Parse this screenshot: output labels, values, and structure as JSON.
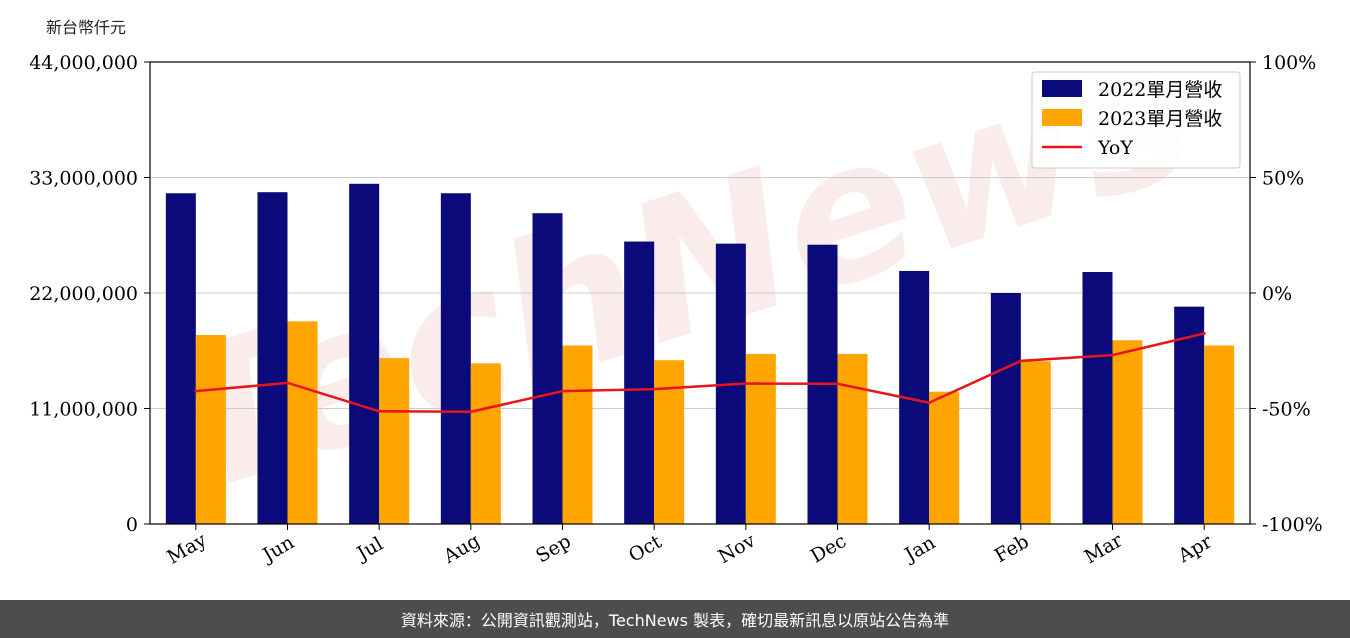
{
  "unit_label": "新台幣仟元",
  "footer_text": "資料來源：公開資訊觀測站，TechNews 製表，確切最新訊息以原站公告為準",
  "watermark_text": "TechNews",
  "colors": {
    "bar2022": "#0a0a7a",
    "bar2023": "#ffa500",
    "yoy": "#e8141c",
    "axis": "#000000",
    "grid": "#cccccc"
  },
  "chart_data": {
    "type": "bar",
    "categories": [
      "May",
      "Jun",
      "Jul",
      "Aug",
      "Sep",
      "Oct",
      "Nov",
      "Dec",
      "Jan",
      "Feb",
      "Mar",
      "Apr"
    ],
    "series": [
      {
        "name": "2022單月營收",
        "values": [
          31500000,
          31600000,
          32400000,
          31500000,
          29600000,
          26900000,
          26700000,
          26600000,
          24100000,
          22000000,
          24000000,
          20700000
        ]
      },
      {
        "name": "2023單月營收",
        "values": [
          18000000,
          19300000,
          15800000,
          15300000,
          17000000,
          15600000,
          16200000,
          16200000,
          12600000,
          15500000,
          17500000,
          17000000
        ]
      },
      {
        "name": "YoY",
        "type": "line",
        "axis": "right",
        "values": [
          -42.5,
          -38.9,
          -51.2,
          -51.4,
          -42.5,
          -41.6,
          -39.2,
          -39.3,
          -47.5,
          -29.4,
          -26.9,
          -17.5
        ]
      }
    ],
    "y_left": {
      "ylim": [
        0,
        44000000
      ],
      "ticks": [
        "0",
        "11,000,000",
        "22,000,000",
        "33,000,000",
        "44,000,000"
      ]
    },
    "y_right": {
      "ylim": [
        -100,
        100
      ],
      "ticks": [
        "-100%",
        "-50%",
        "0%",
        "50%",
        "100%"
      ]
    },
    "grid": true,
    "legend": "top-right"
  }
}
